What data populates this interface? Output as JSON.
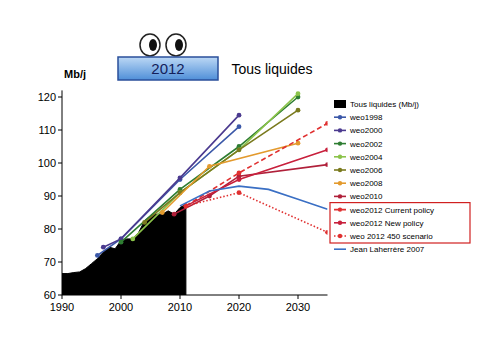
{
  "chart_data": {
    "type": "line",
    "title": "Tous liquides",
    "subtitle": "2012",
    "y_label": "Mb/j",
    "xlim": [
      1990,
      2035
    ],
    "xticks": [
      1990,
      2000,
      2010,
      2020,
      2030
    ],
    "ylim": [
      60,
      122
    ],
    "yticks": [
      60,
      70,
      80,
      90,
      100,
      110,
      120
    ],
    "grid": false,
    "legend": "right",
    "series": [
      {
        "name": "Tous liquides (Mb/j)",
        "type": "area",
        "color": "#000000",
        "x": [
          1990,
          1991,
          1992,
          1993,
          1994,
          1995,
          1996,
          1997,
          1998,
          1999,
          2000,
          2001,
          2002,
          2003,
          2004,
          2005,
          2006,
          2007,
          2008,
          2009,
          2010,
          2011
        ],
        "values": [
          66.5,
          66.5,
          66.8,
          67,
          68,
          69.5,
          71,
          73,
          74.5,
          74,
          76.5,
          77,
          77,
          79,
          82.5,
          84,
          84.5,
          84.5,
          85.5,
          84.5,
          86.5,
          87.5
        ]
      },
      {
        "name": "weo1998",
        "color": "#3b58a8",
        "marker": "circle",
        "line_style": "solid",
        "x": [
          1996,
          2000,
          2010,
          2020
        ],
        "values": [
          72,
          77,
          95,
          111
        ]
      },
      {
        "name": "weo2000",
        "color": "#4b3a8f",
        "marker": "circle",
        "line_style": "solid",
        "x": [
          1997,
          2000,
          2010,
          2020
        ],
        "values": [
          74.5,
          77,
          95.5,
          114.5
        ]
      },
      {
        "name": "weo2002",
        "color": "#2e7d32",
        "marker": "circle",
        "line_style": "solid",
        "x": [
          2000,
          2010,
          2020,
          2030
        ],
        "values": [
          76,
          92,
          105,
          120
        ]
      },
      {
        "name": "weo2004",
        "color": "#8bc34a",
        "marker": "circle",
        "line_style": "solid",
        "x": [
          2002,
          2010,
          2020,
          2030
        ],
        "values": [
          77,
          91,
          104,
          121
        ]
      },
      {
        "name": "weo2006",
        "color": "#7a7a1e",
        "marker": "circle",
        "line_style": "solid",
        "x": [
          2004,
          2010,
          2020,
          2030
        ],
        "values": [
          82,
          91,
          104,
          116
        ]
      },
      {
        "name": "weo2008",
        "color": "#e39a2d",
        "marker": "circle",
        "line_style": "solid",
        "x": [
          2007,
          2015,
          2030
        ],
        "values": [
          85,
          99,
          106
        ]
      },
      {
        "name": "weo2010",
        "color": "#b0203a",
        "marker": "circle",
        "line_style": "solid",
        "x": [
          2009,
          2015,
          2020,
          2035
        ],
        "values": [
          84.5,
          90,
          96,
          99.5
        ]
      },
      {
        "name": "weo2012 Current policy",
        "color": "#e03030",
        "marker": "circle",
        "line_style": "dashed",
        "x": [
          2011,
          2020,
          2035
        ],
        "values": [
          87,
          97,
          112
        ]
      },
      {
        "name": "weo2012 New policy",
        "color": "#c8203c",
        "marker": "circle",
        "line_style": "solid",
        "x": [
          2011,
          2020,
          2035
        ],
        "values": [
          87,
          95,
          104
        ]
      },
      {
        "name": "weo 2012 450 scenario",
        "color": "#e03030",
        "marker": "circle",
        "line_style": "dotted",
        "x": [
          2011,
          2020,
          2035
        ],
        "values": [
          87,
          91,
          79
        ]
      },
      {
        "name": "Jean Laherrère 2007",
        "color": "#3a6fc4",
        "marker": "none",
        "line_style": "solid",
        "x": [
          2010,
          2015,
          2020,
          2025,
          2030,
          2035
        ],
        "values": [
          87,
          91.5,
          93,
          92,
          89,
          86
        ]
      }
    ]
  }
}
